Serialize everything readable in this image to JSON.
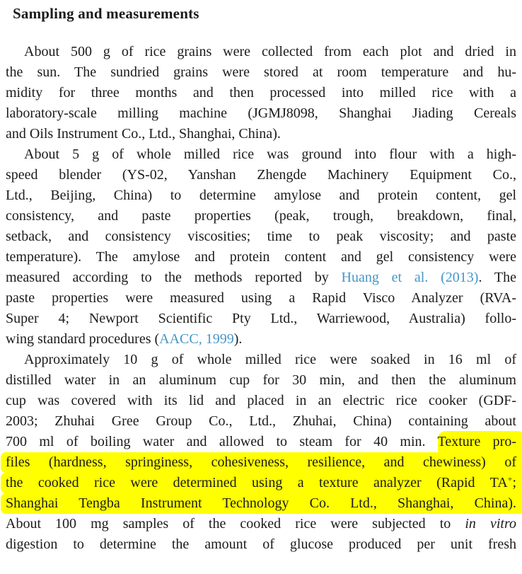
{
  "meta": {
    "colors": {
      "background": "#ffffff",
      "text": "#1b1b1b",
      "link": "#4596c8",
      "highlight": "#ffff00"
    }
  },
  "heading": "Sampling and measurements",
  "paragraphs": [
    {
      "lines": [
        {
          "indent": true,
          "seg": [
            {
              "t": "About 500 g of rice grains were collected from each plot and dried in"
            }
          ]
        },
        {
          "seg": [
            {
              "t": "the sun. The sundried grains were stored at room temperature and hu-"
            }
          ]
        },
        {
          "seg": [
            {
              "t": "midity for three months and then processed into milled rice with a"
            }
          ]
        },
        {
          "seg": [
            {
              "t": "laboratory-scale milling machine (JGMJ8098, Shanghai Jiading Cereals"
            }
          ]
        },
        {
          "last": true,
          "seg": [
            {
              "t": "and Oils Instrument Co., Ltd., Shanghai, China)."
            }
          ]
        }
      ]
    },
    {
      "lines": [
        {
          "indent": true,
          "seg": [
            {
              "t": "About 5 g of whole milled rice was ground into flour with a high-"
            }
          ]
        },
        {
          "seg": [
            {
              "t": "speed blender (YS-02, Yanshan Zhengde Machinery Equipment Co.,"
            }
          ]
        },
        {
          "seg": [
            {
              "t": "Ltd., Beijing, China) to determine amylose and protein content, gel"
            }
          ]
        },
        {
          "seg": [
            {
              "t": "consistency, and paste properties (peak, trough, breakdown, final,"
            }
          ]
        },
        {
          "seg": [
            {
              "t": "setback, and consistency viscosities; time to peak viscosity; and paste"
            }
          ]
        },
        {
          "seg": [
            {
              "t": "temperature). The amylose and protein content and gel consistency were"
            }
          ]
        },
        {
          "seg": [
            {
              "t": "measured according to the methods reported by "
            },
            {
              "t": "Huang et al. (2013)",
              "s": "link"
            },
            {
              "t": ". The"
            }
          ]
        },
        {
          "seg": [
            {
              "t": "paste properties were measured using a Rapid Visco Analyzer (RVA-"
            }
          ]
        },
        {
          "seg": [
            {
              "t": "Super 4; Newport Scientific Pty Ltd., Warriewood, Australia) follo-"
            }
          ]
        },
        {
          "last": true,
          "seg": [
            {
              "t": "wing standard procedures ("
            },
            {
              "t": "AACC, 1999",
              "s": "link"
            },
            {
              "t": ")."
            }
          ]
        }
      ]
    },
    {
      "lines": [
        {
          "indent": true,
          "seg": [
            {
              "t": "Approximately 10 g of whole milled rice were soaked in 16 ml of"
            }
          ]
        },
        {
          "seg": [
            {
              "t": "distilled water in an aluminum cup for 30 min, and then the aluminum"
            }
          ]
        },
        {
          "seg": [
            {
              "t": "cup was covered with its lid and placed in an electric rice cooker (GDF-"
            }
          ]
        },
        {
          "seg": [
            {
              "t": "2003; Zhuhai Gree Group Co., Ltd., Zhuhai, China) containing about"
            }
          ]
        },
        {
          "seg": [
            {
              "t": "700 ml of boiling water and allowed to steam for 40 min. "
            },
            {
              "t": "Texture pro-",
              "s": "hl rl br"
            }
          ]
        },
        {
          "hl": true,
          "seg": [
            {
              "t": "files (hardness, springiness, cohesiveness, resilience, and chewiness) of"
            }
          ]
        },
        {
          "hl": true,
          "seg": [
            {
              "t": "the cooked rice were determined using a texture analyzer (Rapid TA"
            },
            {
              "t": "+",
              "s": "sup"
            },
            {
              "t": ";"
            }
          ]
        },
        {
          "hl": true,
          "seg": [
            {
              "t": "Shanghai Tengba Instrument Technology Co. Ltd., Shanghai, China)."
            }
          ]
        },
        {
          "seg": [
            {
              "t": "About 100 mg samples of the cooked rice were subjected to "
            },
            {
              "t": "in vitro",
              "s": "i"
            }
          ]
        },
        {
          "seg": [
            {
              "t": "digestion to determine the amount of glucose produced per unit fresh"
            }
          ]
        }
      ]
    }
  ]
}
